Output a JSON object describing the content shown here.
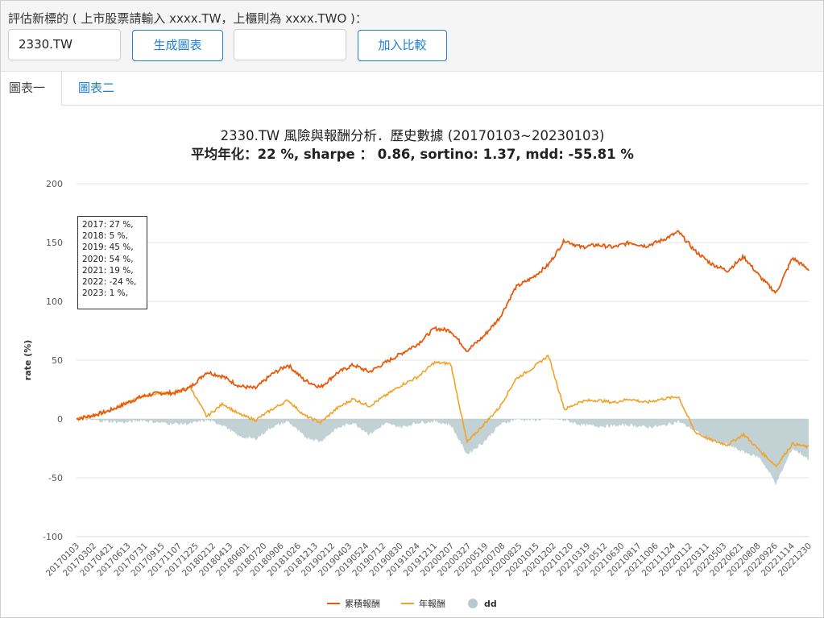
{
  "form": {
    "prompt": "評估新標的 ( 上市股票請輸入 xxxx.TW，上櫃則為 xxxx.TWO )：",
    "ticker_value": "2330.TW",
    "generate_label": "生成圖表",
    "compare_value": "",
    "compare_label": "加入比較"
  },
  "tabs": [
    {
      "label": "圖表一",
      "active": true
    },
    {
      "label": "圖表二",
      "active": false
    }
  ],
  "colors": {
    "cumulative": "#e8590c",
    "annual": "#f0a328",
    "dd": "#b7c9cc",
    "link": "#1d7fd6"
  },
  "tooltip": {
    "lines": [
      "2017: 27 %,",
      "2018: 5 %,",
      "2019: 45 %,",
      "2020: 54 %,",
      "2021: 19 %,",
      "2022: -24 %,",
      "2023: 1 %,"
    ]
  },
  "chart_data": {
    "type": "line",
    "title": "2330.TW 風險與報酬分析．歷史數據 (20170103~20230103)",
    "subtitle": "平均年化：22 %, sharpe ： 0.86, sortino: 1.37, mdd: -55.81 %",
    "ylabel": "rate (%)",
    "xlabel": "",
    "ylim": [
      -100,
      200
    ],
    "yticks": [
      200,
      150,
      100,
      50,
      0,
      -50,
      -100
    ],
    "x_ticks": [
      "20170103",
      "20170302",
      "20170421",
      "20170613",
      "20170731",
      "20170915",
      "20171107",
      "20171225",
      "20180212",
      "20180413",
      "20180601",
      "20180720",
      "20180906",
      "20181026",
      "20181213",
      "20190212",
      "20190403",
      "20190524",
      "20190712",
      "20190830",
      "20191024",
      "20191211",
      "20200207",
      "20200327",
      "20200519",
      "20200708",
      "20200825",
      "20201015",
      "20201202",
      "20210120",
      "20210319",
      "20210512",
      "20210630",
      "20210817",
      "20211006",
      "20211124",
      "20220112",
      "20220311",
      "20220503",
      "20220621",
      "20220808",
      "20220926",
      "20221114",
      "20221230"
    ],
    "legend_position": "bottom",
    "grid": true,
    "series": [
      {
        "name": "累積報酬",
        "type": "line",
        "values": [
          0,
          3,
          7,
          13,
          19,
          22,
          22,
          27,
          40,
          36,
          28,
          26,
          38,
          46,
          33,
          27,
          39,
          46,
          40,
          48,
          56,
          64,
          77,
          75,
          58,
          70,
          86,
          112,
          120,
          131,
          152,
          146,
          148,
          146,
          150,
          147,
          152,
          159,
          143,
          132,
          126,
          138,
          121,
          107,
          137,
          127
        ]
      },
      {
        "name": "年報酬",
        "type": "line",
        "values": [
          0,
          3,
          7,
          13,
          19,
          22,
          22,
          27,
          2,
          13,
          4,
          -1,
          8,
          16,
          3,
          -3,
          9,
          17,
          11,
          20,
          29,
          36,
          48,
          47,
          -20,
          -5,
          10,
          34,
          43,
          54,
          8,
          15,
          16,
          14,
          17,
          14,
          17,
          19,
          -11,
          -18,
          -22,
          -13,
          -27,
          -40,
          -21,
          -24
        ]
      },
      {
        "name": "dd",
        "type": "area",
        "values": [
          0,
          -1,
          -2,
          -3,
          -1,
          -3,
          -4,
          -4,
          -1,
          -5,
          -15,
          -17,
          -7,
          -2,
          -15,
          -19,
          -8,
          -3,
          -13,
          -4,
          -7,
          -3,
          -2,
          -5,
          -30,
          -20,
          -5,
          0,
          -1,
          0,
          -1,
          -5,
          -6,
          -6,
          -5,
          -7,
          -6,
          -2,
          -10,
          -18,
          -22,
          -28,
          -33,
          -55,
          -25,
          -34
        ]
      }
    ]
  }
}
